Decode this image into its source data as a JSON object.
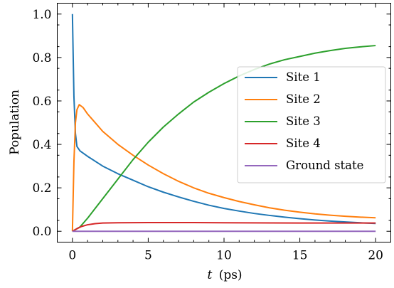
{
  "chart_data": {
    "type": "line",
    "xlabel_var": "t",
    "xlabel_unit": "(ps)",
    "ylabel": "Population",
    "xlim": [
      -1,
      21
    ],
    "ylim": [
      -0.05,
      1.05
    ],
    "xticks": [
      0,
      5,
      10,
      15,
      20
    ],
    "xtick_labels": [
      "0",
      "5",
      "10",
      "15",
      "20"
    ],
    "yticks": [
      0.0,
      0.2,
      0.4,
      0.6,
      0.8,
      1.0
    ],
    "ytick_labels": [
      "0.0",
      "0.2",
      "0.4",
      "0.6",
      "0.8",
      "1.0"
    ],
    "grid": false,
    "legend_position": "center-right",
    "series": [
      {
        "name": "Site 1",
        "color": "#1f77b4",
        "points": [
          [
            0,
            1.0
          ],
          [
            0.1,
            0.62
          ],
          [
            0.2,
            0.45
          ],
          [
            0.3,
            0.39
          ],
          [
            0.5,
            0.37
          ],
          [
            1,
            0.345
          ],
          [
            2,
            0.3
          ],
          [
            3,
            0.265
          ],
          [
            4,
            0.235
          ],
          [
            5,
            0.205
          ],
          [
            6,
            0.18
          ],
          [
            7,
            0.158
          ],
          [
            8,
            0.138
          ],
          [
            9,
            0.12
          ],
          [
            10,
            0.105
          ],
          [
            11,
            0.093
          ],
          [
            12,
            0.082
          ],
          [
            13,
            0.073
          ],
          [
            14,
            0.065
          ],
          [
            15,
            0.058
          ],
          [
            16,
            0.052
          ],
          [
            17,
            0.047
          ],
          [
            18,
            0.043
          ],
          [
            19,
            0.039
          ],
          [
            20,
            0.036
          ]
        ]
      },
      {
        "name": "Site 2",
        "color": "#ff7f0e",
        "points": [
          [
            0,
            0.0
          ],
          [
            0.1,
            0.32
          ],
          [
            0.2,
            0.5
          ],
          [
            0.3,
            0.56
          ],
          [
            0.45,
            0.583
          ],
          [
            0.7,
            0.57
          ],
          [
            1,
            0.54
          ],
          [
            2,
            0.46
          ],
          [
            3,
            0.4
          ],
          [
            4,
            0.35
          ],
          [
            5,
            0.305
          ],
          [
            6,
            0.265
          ],
          [
            7,
            0.23
          ],
          [
            8,
            0.2
          ],
          [
            9,
            0.175
          ],
          [
            10,
            0.155
          ],
          [
            11,
            0.137
          ],
          [
            12,
            0.122
          ],
          [
            13,
            0.108
          ],
          [
            14,
            0.097
          ],
          [
            15,
            0.088
          ],
          [
            16,
            0.08
          ],
          [
            17,
            0.074
          ],
          [
            18,
            0.069
          ],
          [
            19,
            0.065
          ],
          [
            20,
            0.062
          ]
        ]
      },
      {
        "name": "Site 3",
        "color": "#2ca02c",
        "points": [
          [
            0,
            0.0
          ],
          [
            0.5,
            0.02
          ],
          [
            1,
            0.06
          ],
          [
            2,
            0.15
          ],
          [
            3,
            0.24
          ],
          [
            4,
            0.33
          ],
          [
            5,
            0.41
          ],
          [
            6,
            0.48
          ],
          [
            7,
            0.54
          ],
          [
            8,
            0.595
          ],
          [
            9,
            0.64
          ],
          [
            10,
            0.68
          ],
          [
            11,
            0.715
          ],
          [
            12,
            0.745
          ],
          [
            13,
            0.77
          ],
          [
            14,
            0.79
          ],
          [
            15,
            0.805
          ],
          [
            16,
            0.82
          ],
          [
            17,
            0.832
          ],
          [
            18,
            0.842
          ],
          [
            19,
            0.849
          ],
          [
            20,
            0.855
          ]
        ]
      },
      {
        "name": "Site 4",
        "color": "#d62728",
        "points": [
          [
            0,
            0.0
          ],
          [
            0.3,
            0.012
          ],
          [
            0.6,
            0.022
          ],
          [
            1,
            0.03
          ],
          [
            1.5,
            0.035
          ],
          [
            2,
            0.038
          ],
          [
            3,
            0.039
          ],
          [
            5,
            0.04
          ],
          [
            8,
            0.04
          ],
          [
            10,
            0.039
          ],
          [
            15,
            0.038
          ],
          [
            20,
            0.038
          ]
        ]
      },
      {
        "name": "Ground state",
        "color": "#9467bd",
        "points": [
          [
            0,
            0.0
          ],
          [
            5,
            0.0
          ],
          [
            10,
            0.0
          ],
          [
            15,
            0.0
          ],
          [
            20,
            0.0
          ]
        ]
      }
    ]
  }
}
